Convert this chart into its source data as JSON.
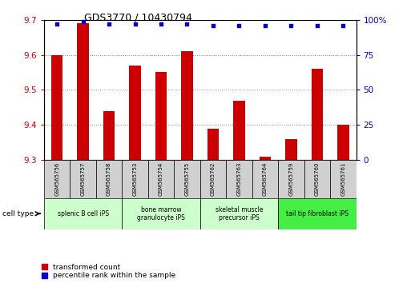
{
  "title": "GDS3770 / 10430794",
  "samples": [
    "GSM565756",
    "GSM565757",
    "GSM565758",
    "GSM565753",
    "GSM565754",
    "GSM565755",
    "GSM565762",
    "GSM565763",
    "GSM565764",
    "GSM565759",
    "GSM565760",
    "GSM565761"
  ],
  "transformed_count": [
    9.6,
    9.69,
    9.44,
    9.57,
    9.55,
    9.61,
    9.39,
    9.47,
    9.31,
    9.36,
    9.56,
    9.4
  ],
  "percentile_rank": [
    97,
    99,
    97,
    97,
    97,
    97,
    96,
    96,
    96,
    96,
    96,
    96
  ],
  "ylim_left": [
    9.3,
    9.7
  ],
  "ylim_right": [
    0,
    100
  ],
  "yticks_left": [
    9.3,
    9.4,
    9.5,
    9.6,
    9.7
  ],
  "yticks_right": [
    0,
    25,
    50,
    75,
    100
  ],
  "cell_type_groups": [
    {
      "label": "splenic B cell iPS",
      "start": 0,
      "end": 3,
      "color": "#ccffcc"
    },
    {
      "label": "bone marrow\ngranulocyte iPS",
      "start": 3,
      "end": 6,
      "color": "#ccffcc"
    },
    {
      "label": "skeletal muscle\nprecursor iPS",
      "start": 6,
      "end": 9,
      "color": "#ccffcc"
    },
    {
      "label": "tail tip fibroblast iPS",
      "start": 9,
      "end": 12,
      "color": "#44ee44"
    }
  ],
  "bar_color": "#cc0000",
  "dot_color": "#0000cc",
  "bar_bottom": 9.3,
  "grid_color": "#888888",
  "legend_labels": [
    "transformed count",
    "percentile rank within the sample"
  ],
  "legend_colors": [
    "#cc0000",
    "#0000cc"
  ],
  "cell_type_label": "cell type",
  "ylabel_left_color": "#cc0000",
  "ylabel_right_color": "#0000cc",
  "title_fontsize": 9,
  "tick_fontsize": 7.5,
  "sample_fontsize": 5.0,
  "celltype_fontsize": 5.5,
  "legend_fontsize": 6.5
}
